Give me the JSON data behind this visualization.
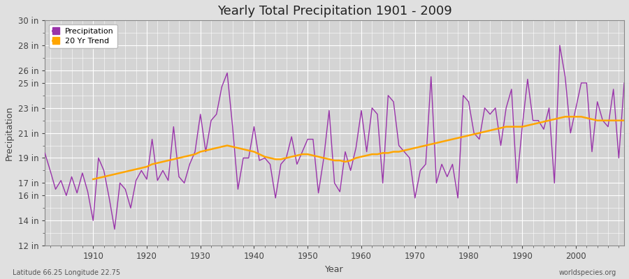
{
  "title": "Yearly Total Precipitation 1901 - 2009",
  "xlabel": "Year",
  "ylabel": "Precipitation",
  "lat_lon_label": "Latitude 66.25 Longitude 22.75",
  "source_label": "worldspecies.org",
  "precip_color": "#9933aa",
  "trend_color": "#FFA500",
  "bg_color": "#e0e0e0",
  "plot_bg_color": "#d4d4d4",
  "ylim": [
    12,
    30
  ],
  "yticks": [
    12,
    14,
    16,
    17,
    19,
    21,
    23,
    25,
    26,
    28,
    30
  ],
  "ytick_labels": [
    "12 in",
    "14 in",
    "16 in",
    "17 in",
    "19 in",
    "21 in",
    "23 in",
    "25 in",
    "26 in",
    "28 in",
    "30 in"
  ],
  "xlim": [
    1901,
    2009
  ],
  "xticks": [
    1910,
    1920,
    1930,
    1940,
    1950,
    1960,
    1970,
    1980,
    1990,
    2000
  ],
  "years": [
    1901,
    1902,
    1903,
    1904,
    1905,
    1906,
    1907,
    1908,
    1909,
    1910,
    1911,
    1912,
    1913,
    1914,
    1915,
    1916,
    1917,
    1918,
    1919,
    1920,
    1921,
    1922,
    1923,
    1924,
    1925,
    1926,
    1927,
    1928,
    1929,
    1930,
    1931,
    1932,
    1933,
    1934,
    1935,
    1936,
    1937,
    1938,
    1939,
    1940,
    1941,
    1942,
    1943,
    1944,
    1945,
    1946,
    1947,
    1948,
    1949,
    1950,
    1951,
    1952,
    1953,
    1954,
    1955,
    1956,
    1957,
    1958,
    1959,
    1960,
    1961,
    1962,
    1963,
    1964,
    1965,
    1966,
    1967,
    1968,
    1969,
    1970,
    1971,
    1972,
    1973,
    1974,
    1975,
    1976,
    1977,
    1978,
    1979,
    1980,
    1981,
    1982,
    1983,
    1984,
    1985,
    1986,
    1987,
    1988,
    1989,
    1990,
    1991,
    1992,
    1993,
    1994,
    1995,
    1996,
    1997,
    1998,
    1999,
    2000,
    2001,
    2002,
    2003,
    2004,
    2005,
    2006,
    2007,
    2008,
    2009
  ],
  "precip": [
    19.4,
    18.0,
    16.5,
    17.2,
    16.0,
    17.5,
    16.2,
    17.8,
    16.3,
    14.0,
    19.0,
    18.0,
    15.8,
    13.3,
    17.0,
    16.5,
    15.0,
    17.2,
    18.0,
    17.3,
    20.5,
    17.2,
    18.0,
    17.2,
    21.5,
    17.5,
    17.0,
    18.5,
    19.5,
    22.5,
    19.5,
    22.0,
    22.5,
    24.7,
    25.8,
    21.5,
    16.5,
    19.0,
    19.0,
    21.5,
    18.8,
    19.0,
    18.5,
    15.8,
    18.5,
    19.0,
    20.7,
    18.5,
    19.5,
    20.5,
    20.5,
    16.2,
    19.0,
    22.8,
    17.0,
    16.3,
    19.5,
    18.0,
    19.8,
    22.8,
    19.5,
    23.0,
    22.5,
    17.0,
    24.0,
    23.5,
    20.0,
    19.5,
    19.0,
    15.8,
    18.0,
    18.5,
    25.5,
    17.0,
    18.5,
    17.5,
    18.5,
    15.8,
    24.0,
    23.5,
    21.0,
    20.5,
    23.0,
    22.5,
    23.0,
    20.0,
    23.0,
    24.5,
    17.0,
    21.5,
    25.3,
    22.0,
    22.0,
    21.3,
    23.0,
    17.0,
    28.0,
    25.5,
    21.0,
    23.0,
    25.0,
    25.0,
    19.5,
    23.5,
    22.0,
    21.5,
    24.5,
    19.0,
    25.0
  ],
  "trend": [
    null,
    null,
    null,
    null,
    null,
    null,
    null,
    null,
    null,
    17.3,
    17.4,
    17.5,
    17.6,
    17.7,
    17.8,
    17.9,
    18.0,
    18.1,
    18.2,
    18.3,
    18.5,
    18.6,
    18.7,
    18.8,
    18.9,
    19.0,
    19.1,
    19.2,
    19.3,
    19.5,
    19.6,
    19.7,
    19.8,
    19.9,
    20.0,
    19.9,
    19.8,
    19.7,
    19.6,
    19.5,
    19.3,
    19.1,
    19.0,
    18.9,
    18.9,
    19.0,
    19.1,
    19.2,
    19.3,
    19.3,
    19.2,
    19.1,
    19.0,
    18.9,
    18.8,
    18.8,
    18.7,
    18.8,
    19.0,
    19.1,
    19.2,
    19.3,
    19.3,
    19.4,
    19.4,
    19.5,
    19.5,
    19.6,
    19.7,
    19.8,
    19.9,
    20.0,
    20.1,
    20.2,
    20.3,
    20.4,
    20.5,
    20.6,
    20.7,
    20.8,
    20.9,
    21.0,
    21.1,
    21.2,
    21.3,
    21.4,
    21.5,
    21.5,
    21.5,
    21.5,
    21.6,
    21.7,
    21.8,
    21.9,
    22.0,
    22.1,
    22.2,
    22.3,
    22.3,
    22.3,
    22.3,
    22.2,
    22.1,
    22.0,
    22.0,
    22.0,
    22.0,
    22.0,
    22.0
  ]
}
